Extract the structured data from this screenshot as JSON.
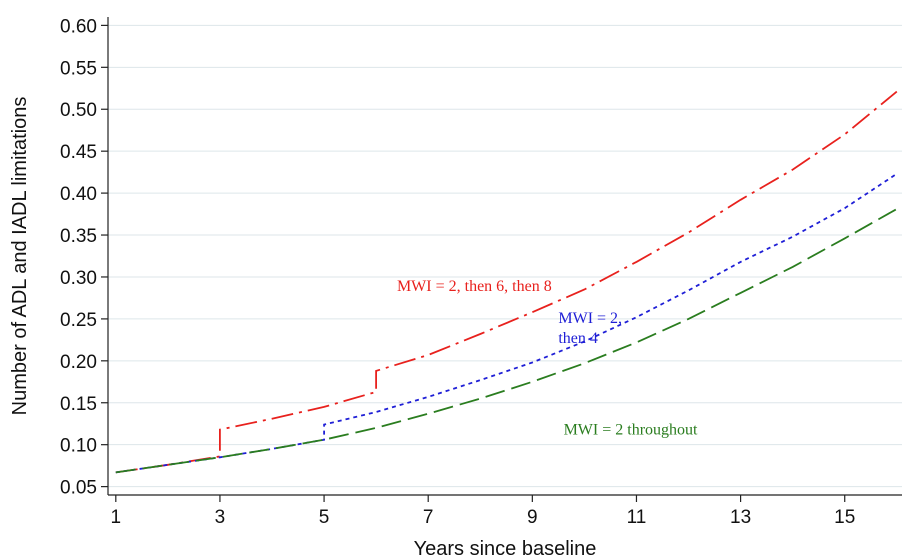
{
  "chart_data": {
    "type": "line",
    "xlabel": "Years since baseline",
    "ylabel": "Number of ADL and IADL limitations",
    "xlim": [
      0.85,
      16.1
    ],
    "ylim": [
      0.04,
      0.61
    ],
    "xticks": [
      1,
      3,
      5,
      7,
      9,
      11,
      13,
      15
    ],
    "xtick_labels": [
      "1",
      "3",
      "5",
      "7",
      "9",
      "11",
      "13",
      "15"
    ],
    "yticks": [
      0.05,
      0.1,
      0.15,
      0.2,
      0.25,
      0.3,
      0.35,
      0.4,
      0.45,
      0.5,
      0.55,
      0.6
    ],
    "ytick_labels": [
      "0.05",
      "0.10",
      "0.15",
      "0.20",
      "0.25",
      "0.30",
      "0.35",
      "0.40",
      "0.45",
      "0.50",
      "0.55",
      "0.60"
    ],
    "grid": "horizontal",
    "series": [
      {
        "name": "MWI = 2, then 6, then 8",
        "color": "#e8211d",
        "dash": "dash-dot",
        "points": [
          [
            1,
            0.067
          ],
          [
            2,
            0.076
          ],
          [
            3,
            0.086
          ],
          [
            3,
            0.118
          ],
          [
            4,
            0.131
          ],
          [
            5,
            0.145
          ],
          [
            6,
            0.163
          ],
          [
            6,
            0.188
          ],
          [
            7,
            0.207
          ],
          [
            8,
            0.232
          ],
          [
            9,
            0.258
          ],
          [
            10,
            0.285
          ],
          [
            11,
            0.318
          ],
          [
            12,
            0.353
          ],
          [
            13,
            0.392
          ],
          [
            14,
            0.428
          ],
          [
            15,
            0.47
          ],
          [
            16,
            0.521
          ]
        ]
      },
      {
        "name": "MWI = 2, then 4",
        "color": "#1f1fd6",
        "dash": "dotted",
        "points": [
          [
            1,
            0.067
          ],
          [
            2,
            0.076
          ],
          [
            3,
            0.085
          ],
          [
            4,
            0.095
          ],
          [
            5,
            0.106
          ],
          [
            5,
            0.124
          ],
          [
            6,
            0.139
          ],
          [
            7,
            0.157
          ],
          [
            8,
            0.177
          ],
          [
            9,
            0.198
          ],
          [
            10,
            0.223
          ],
          [
            11,
            0.252
          ],
          [
            12,
            0.284
          ],
          [
            13,
            0.318
          ],
          [
            14,
            0.348
          ],
          [
            15,
            0.382
          ],
          [
            16,
            0.423
          ]
        ]
      },
      {
        "name": "MWI = 2 throughout",
        "color": "#2a7d1f",
        "dash": "long-dash",
        "points": [
          [
            1,
            0.067
          ],
          [
            2,
            0.076
          ],
          [
            3,
            0.085
          ],
          [
            4,
            0.095
          ],
          [
            5,
            0.106
          ],
          [
            6,
            0.12
          ],
          [
            7,
            0.137
          ],
          [
            8,
            0.155
          ],
          [
            9,
            0.175
          ],
          [
            10,
            0.197
          ],
          [
            11,
            0.222
          ],
          [
            12,
            0.25
          ],
          [
            13,
            0.281
          ],
          [
            14,
            0.312
          ],
          [
            15,
            0.346
          ],
          [
            16,
            0.381
          ]
        ]
      }
    ],
    "annotations": [
      {
        "series": 0,
        "lines": [
          "MWI = 2, then 6, then 8"
        ],
        "x": 6.4,
        "y": 0.283
      },
      {
        "series": 1,
        "lines": [
          "MWI = 2,",
          "then 4"
        ],
        "x": 9.5,
        "y": 0.245
      },
      {
        "series": 2,
        "lines": [
          "MWI = 2 throughout"
        ],
        "x": 9.6,
        "y": 0.112
      }
    ]
  }
}
